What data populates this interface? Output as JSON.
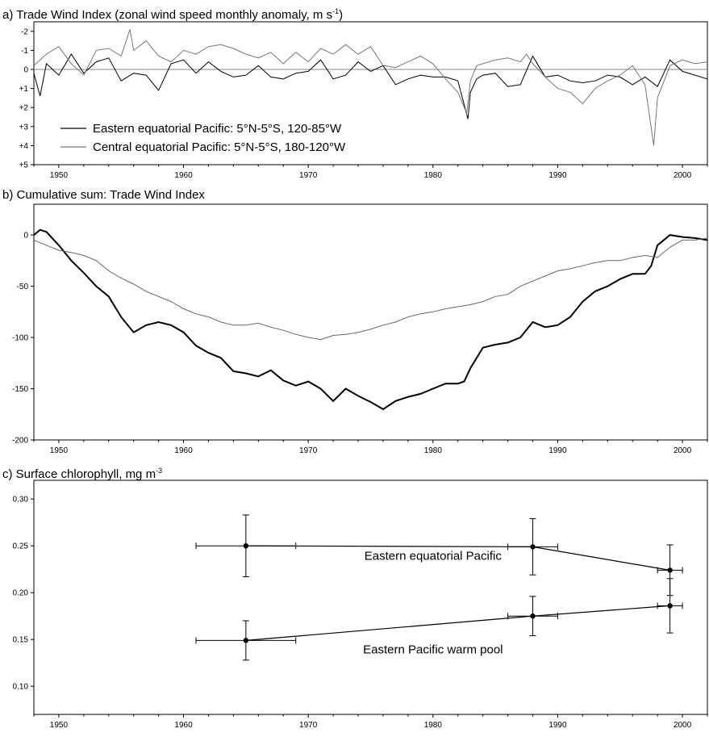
{
  "chart_data": [
    {
      "type": "line",
      "title_main": "a) Trade Wind Index (zonal wind speed monthly anomaly, m s",
      "title_sup": "-1",
      "title_end": ")",
      "x_ticks": [
        "1950",
        "1960",
        "1970",
        "1980",
        "1990",
        "2000"
      ],
      "y_ticks": [
        "-2",
        "-1",
        "0",
        "+1",
        "+2",
        "+3",
        "+4",
        "+5"
      ],
      "ylim": [
        -2.5,
        5
      ],
      "y_inverted": true,
      "xlim": [
        1948,
        2002
      ],
      "legend_position": "lower-left",
      "series": [
        {
          "name": "Eastern equatorial Pacific: 5°N-5°S, 120-85°W",
          "stroke": "#000000",
          "x": [
            1948,
            1948.5,
            1949,
            1950,
            1951,
            1952,
            1953,
            1954,
            1955,
            1956,
            1957,
            1958,
            1959,
            1960,
            1961,
            1962,
            1963,
            1964,
            1965,
            1966,
            1967,
            1968,
            1969,
            1970,
            1971,
            1972,
            1973,
            1974,
            1975,
            1976,
            1977,
            1978,
            1979,
            1980,
            1981,
            1982,
            1982.8,
            1983,
            1983.5,
            1984,
            1985,
            1986,
            1987,
            1988,
            1989,
            1990,
            1991,
            1992,
            1993,
            1994,
            1995,
            1996,
            1997,
            1998,
            1999,
            2000,
            2001,
            2002
          ],
          "y": [
            0.2,
            1.4,
            -0.3,
            0.3,
            -0.8,
            0.2,
            -0.4,
            -0.6,
            0.6,
            0.2,
            0.3,
            1.1,
            -0.3,
            -0.5,
            0.2,
            -0.4,
            0.1,
            0.4,
            0.3,
            -0.2,
            0.4,
            0.5,
            0.2,
            0.1,
            -0.5,
            0.5,
            0.3,
            -0.4,
            0.1,
            -0.2,
            0.8,
            0.5,
            0.3,
            0.4,
            0.4,
            0.6,
            2.6,
            1.2,
            0.5,
            0.3,
            0.2,
            0.9,
            0.8,
            -0.7,
            0.4,
            0.3,
            0.6,
            0.7,
            0.6,
            0.3,
            0.4,
            0.8,
            0.4,
            0.9,
            -0.5,
            0.1,
            0.3,
            0.5
          ]
        },
        {
          "name": "Central equatorial Pacific: 5°N-5°S, 180-120°W",
          "stroke": "#777777",
          "x": [
            1948,
            1949,
            1950,
            1951,
            1952,
            1953,
            1954,
            1955,
            1955.7,
            1956,
            1957,
            1958,
            1959,
            1960,
            1961,
            1962,
            1963,
            1964,
            1965,
            1966,
            1967,
            1968,
            1969,
            1970,
            1971,
            1972,
            1973,
            1974,
            1975,
            1976,
            1977,
            1978,
            1979,
            1980,
            1981,
            1982,
            1982.7,
            1983,
            1983.5,
            1984,
            1985,
            1986,
            1987,
            1987.5,
            1988,
            1989,
            1990,
            1991,
            1992,
            1993,
            1994,
            1995,
            1996,
            1997,
            1997.7,
            1998,
            1999,
            2000,
            2001,
            2002
          ],
          "y": [
            -0.2,
            -0.8,
            -1.2,
            -0.3,
            0.3,
            -1.0,
            -1.1,
            -0.7,
            -2.1,
            -1.0,
            -1.5,
            -0.7,
            -0.4,
            -1.0,
            -0.8,
            -1.2,
            -1.3,
            -1.1,
            -0.8,
            -0.6,
            -0.9,
            -0.3,
            -0.9,
            -0.4,
            -1.1,
            -0.8,
            -1.3,
            -0.8,
            -1.2,
            -0.2,
            -0.1,
            -0.4,
            -0.7,
            -0.3,
            0.5,
            1.2,
            2.3,
            0.6,
            -0.2,
            -0.3,
            -0.5,
            -0.6,
            -0.4,
            -0.8,
            -0.3,
            0.4,
            1.0,
            1.2,
            1.8,
            1.0,
            0.6,
            0.3,
            -0.2,
            0.8,
            4.0,
            1.5,
            -0.2,
            -0.5,
            -0.3,
            -0.4
          ]
        }
      ]
    },
    {
      "type": "line",
      "title": "b) Cumulative sum: Trade Wind Index",
      "x_ticks": [
        "1950",
        "1960",
        "1970",
        "1980",
        "1990",
        "2000"
      ],
      "y_ticks": [
        "0",
        "-50",
        "-100",
        "-150",
        "-200"
      ],
      "ylim": [
        -200,
        30
      ],
      "xlim": [
        1948,
        2002
      ],
      "series": [
        {
          "name": "Eastern equatorial Pacific",
          "stroke": "#000000",
          "stroke_width": 2,
          "x": [
            1948,
            1948.5,
            1949,
            1950,
            1951,
            1952,
            1953,
            1954,
            1955,
            1956,
            1957,
            1958,
            1959,
            1960,
            1961,
            1962,
            1963,
            1964,
            1965,
            1966,
            1967,
            1968,
            1969,
            1970,
            1971,
            1972,
            1973,
            1974,
            1975,
            1976,
            1977,
            1978,
            1979,
            1980,
            1981,
            1982,
            1982.5,
            1983,
            1984,
            1985,
            1986,
            1987,
            1988,
            1989,
            1990,
            1991,
            1992,
            1993,
            1994,
            1995,
            1996,
            1997,
            1997.5,
            1998,
            1999,
            2000,
            2001,
            2002
          ],
          "y": [
            0,
            5,
            3,
            -10,
            -25,
            -37,
            -50,
            -60,
            -80,
            -95,
            -88,
            -85,
            -88,
            -95,
            -108,
            -115,
            -120,
            -133,
            -135,
            -138,
            -132,
            -142,
            -147,
            -143,
            -150,
            -162,
            -150,
            -157,
            -163,
            -170,
            -162,
            -158,
            -155,
            -150,
            -145,
            -145,
            -143,
            -130,
            -110,
            -107,
            -105,
            -100,
            -85,
            -90,
            -88,
            -80,
            -65,
            -55,
            -50,
            -43,
            -38,
            -38,
            -30,
            -10,
            0,
            -2,
            -3,
            -5
          ]
        },
        {
          "name": "Central equatorial Pacific",
          "stroke": "#666666",
          "stroke_width": 1,
          "x": [
            1948,
            1949,
            1950,
            1951,
            1952,
            1953,
            1954,
            1955,
            1956,
            1957,
            1958,
            1959,
            1960,
            1961,
            1962,
            1963,
            1964,
            1965,
            1966,
            1967,
            1968,
            1969,
            1970,
            1971,
            1972,
            1973,
            1974,
            1975,
            1976,
            1977,
            1978,
            1979,
            1980,
            1981,
            1982,
            1983,
            1984,
            1985,
            1986,
            1987,
            1988,
            1989,
            1990,
            1991,
            1992,
            1993,
            1994,
            1995,
            1996,
            1997,
            1998,
            1999,
            2000,
            2001,
            2002
          ],
          "y": [
            -5,
            -10,
            -15,
            -17,
            -20,
            -25,
            -35,
            -42,
            -48,
            -55,
            -60,
            -65,
            -72,
            -77,
            -80,
            -85,
            -88,
            -88,
            -86,
            -90,
            -93,
            -97,
            -100,
            -102,
            -98,
            -97,
            -95,
            -92,
            -88,
            -85,
            -80,
            -77,
            -75,
            -72,
            -70,
            -68,
            -65,
            -60,
            -58,
            -50,
            -45,
            -40,
            -35,
            -33,
            -30,
            -27,
            -25,
            -25,
            -22,
            -20,
            -22,
            -12,
            -5,
            -5,
            -3
          ]
        }
      ]
    },
    {
      "type": "scatter",
      "title_main": "c) Surface chlorophyll, mg m",
      "title_sup": "-3",
      "x_ticks": [
        "1950",
        "1960",
        "1970",
        "1980",
        "1990",
        "2000"
      ],
      "y_ticks": [
        "0.30",
        "0.25",
        "0.20",
        "0.15",
        "0.10"
      ],
      "ylim": [
        0.07,
        0.32
      ],
      "xlim": [
        1948,
        2002
      ],
      "series": [
        {
          "name": "Eastern equatorial Pacific",
          "points": [
            {
              "x": 1965,
              "y": 0.25,
              "xerr": 4,
              "yerr": 0.033
            },
            {
              "x": 1988,
              "y": 0.249,
              "xerr": 2,
              "yerr": 0.03
            },
            {
              "x": 1999,
              "y": 0.224,
              "xerr": 1,
              "yerr": 0.027
            }
          ]
        },
        {
          "name": "Eastern Pacific warm pool",
          "points": [
            {
              "x": 1965,
              "y": 0.149,
              "xerr": 4,
              "yerr": 0.021
            },
            {
              "x": 1988,
              "y": 0.175,
              "xerr": 2,
              "yerr": 0.021
            },
            {
              "x": 1999,
              "y": 0.186,
              "xerr": 1,
              "yerr": 0.029
            }
          ]
        }
      ]
    }
  ]
}
